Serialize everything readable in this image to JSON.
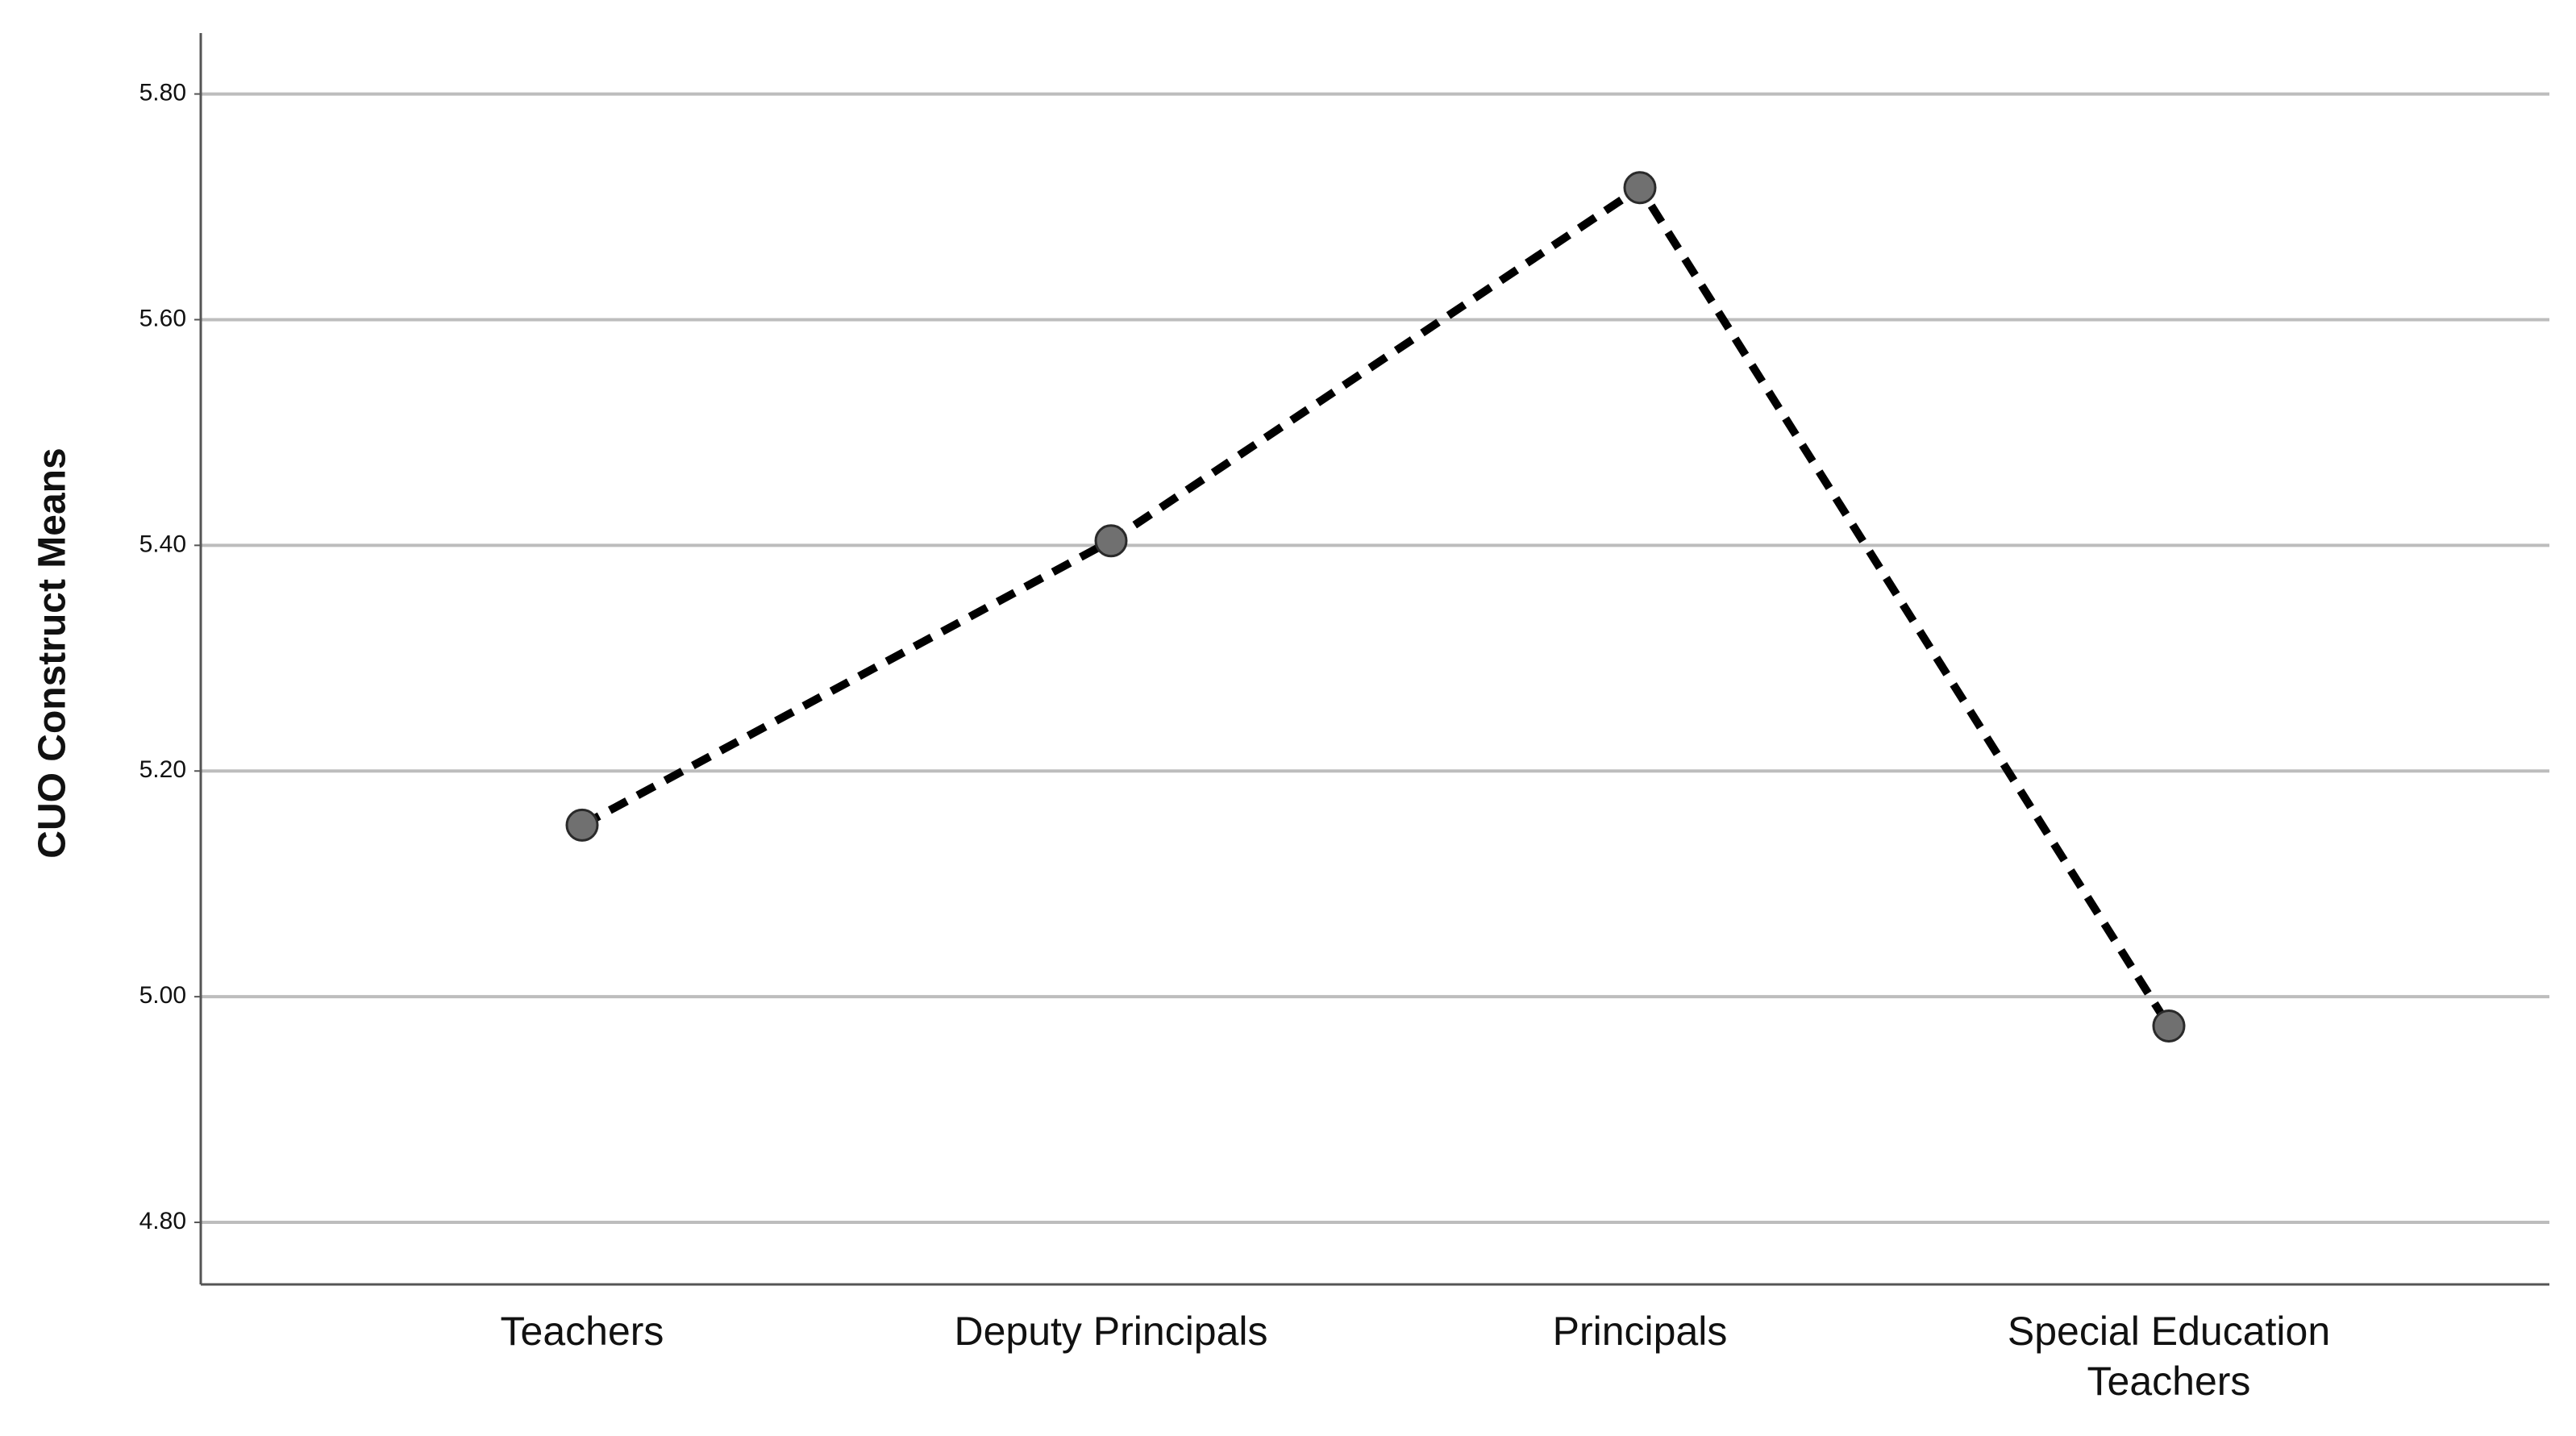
{
  "chart_data": {
    "type": "line",
    "y_label": "CUO Construct Means",
    "categories": [
      "Teachers",
      "Deputy Principals",
      "Principals",
      "Special Education Teachers"
    ],
    "values": [
      5.152,
      5.404,
      5.717,
      4.974
    ],
    "color": "#000000",
    "marker_color": "#707070",
    "line_style": "dashed",
    "ylim": [
      4.745,
      5.854
    ],
    "yticks": [
      {
        "value": 4.8,
        "label": "4.80"
      },
      {
        "value": 5.0,
        "label": "5.00"
      },
      {
        "value": 5.2,
        "label": "5.20"
      },
      {
        "value": 5.4,
        "label": "5.40"
      },
      {
        "value": 5.6,
        "label": "5.60"
      },
      {
        "value": 5.8,
        "label": "5.80"
      }
    ],
    "grid": true
  }
}
